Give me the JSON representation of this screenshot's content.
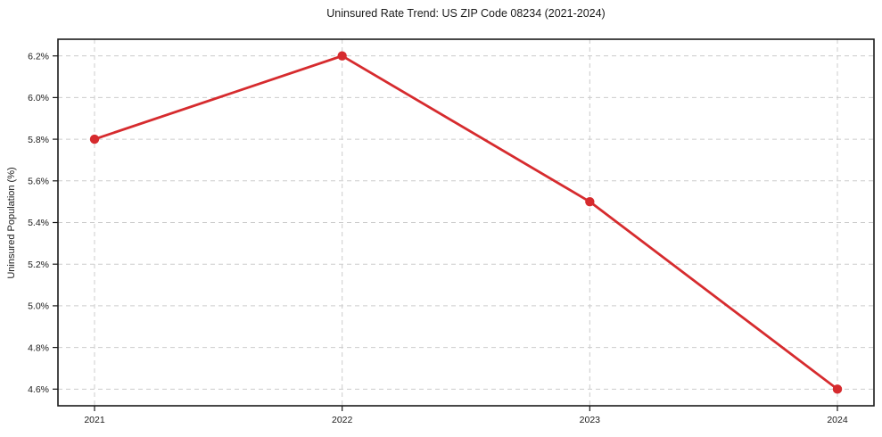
{
  "chart_data": {
    "type": "line",
    "title": "Uninsured Rate Trend: US ZIP Code 08234 (2021-2024)",
    "xlabel": "",
    "ylabel": "Uninsured Population (%)",
    "categories": [
      "2021",
      "2022",
      "2023",
      "2024"
    ],
    "values": [
      5.8,
      6.2,
      5.5,
      4.6
    ],
    "yticks": [
      4.6,
      4.8,
      5.0,
      5.2,
      5.4,
      5.6,
      5.8,
      6.0,
      6.2
    ],
    "ytick_labels": [
      "4.6%",
      "4.8%",
      "5.0%",
      "5.2%",
      "5.4%",
      "5.6%",
      "5.8%",
      "6.0%",
      "6.2%"
    ],
    "ylim": [
      4.52,
      6.28
    ],
    "grid": true,
    "grid_style": "dashed",
    "legend": "none",
    "colors": {
      "line": "#d62b2e",
      "marker": "#d62b2e",
      "grid": "#cccccc",
      "axis": "#1a1a1a",
      "text": "#1a1a1a",
      "background": "#ffffff"
    }
  }
}
